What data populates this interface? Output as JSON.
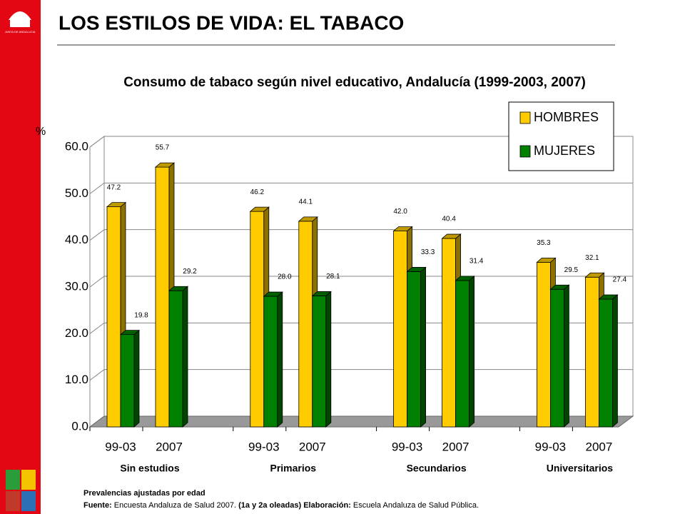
{
  "header": {
    "title": "LOS ESTILOS DE VIDA: EL TABACO",
    "logo": "JUNTA DE ANDALUCIA"
  },
  "chart_data": {
    "type": "bar3d",
    "title": "Consumo de tabaco según nivel educativo, Andalucía (1999-2003, 2007)",
    "y_label": "%",
    "groups": [
      "Sin estudios",
      "Primarios",
      "Secundarios",
      "Universitarios"
    ],
    "categories": [
      "99-03",
      "2007",
      "99-03",
      "2007",
      "99-03",
      "2007",
      "99-03",
      "2007"
    ],
    "series": [
      {
        "name": "HOMBRES",
        "color": "#ffcc00",
        "values": [
          47.2,
          55.7,
          46.2,
          44.1,
          42.0,
          40.4,
          35.3,
          32.1
        ],
        "value_labels": [
          "47.2",
          "55.7",
          "46.2",
          "44.1",
          "42.0",
          "40.4",
          "35.3",
          "32.1"
        ]
      },
      {
        "name": "MUJERES",
        "color": "#008000",
        "values": [
          19.8,
          29.2,
          28.0,
          28.1,
          33.3,
          31.4,
          29.5,
          27.4
        ],
        "value_labels": [
          "19.8",
          "29.2",
          "28.0",
          "28.1",
          "33.3",
          "31.4",
          "29.5",
          "27.4"
        ]
      }
    ],
    "ylim": [
      0,
      60
    ],
    "yticks": [
      {
        "value": 0,
        "label": "0.0"
      },
      {
        "value": 10,
        "label": "10.0"
      },
      {
        "value": 20,
        "label": "20.0"
      },
      {
        "value": 30,
        "label": "30.0"
      },
      {
        "value": 40,
        "label": "40.0"
      },
      {
        "value": 50,
        "label": "50.0"
      },
      {
        "value": 60,
        "label": "60.0"
      }
    ],
    "grid": true,
    "legend": "top-right"
  },
  "footer": {
    "note": "Prevalencias ajustadas por edad",
    "source_parts": [
      "Fuente:",
      "Encuesta Andaluza de Salud 2007.",
      "(1a y 2a oleadas) Elaboración:",
      "Escuela Andaluza de Salud Pública."
    ]
  }
}
